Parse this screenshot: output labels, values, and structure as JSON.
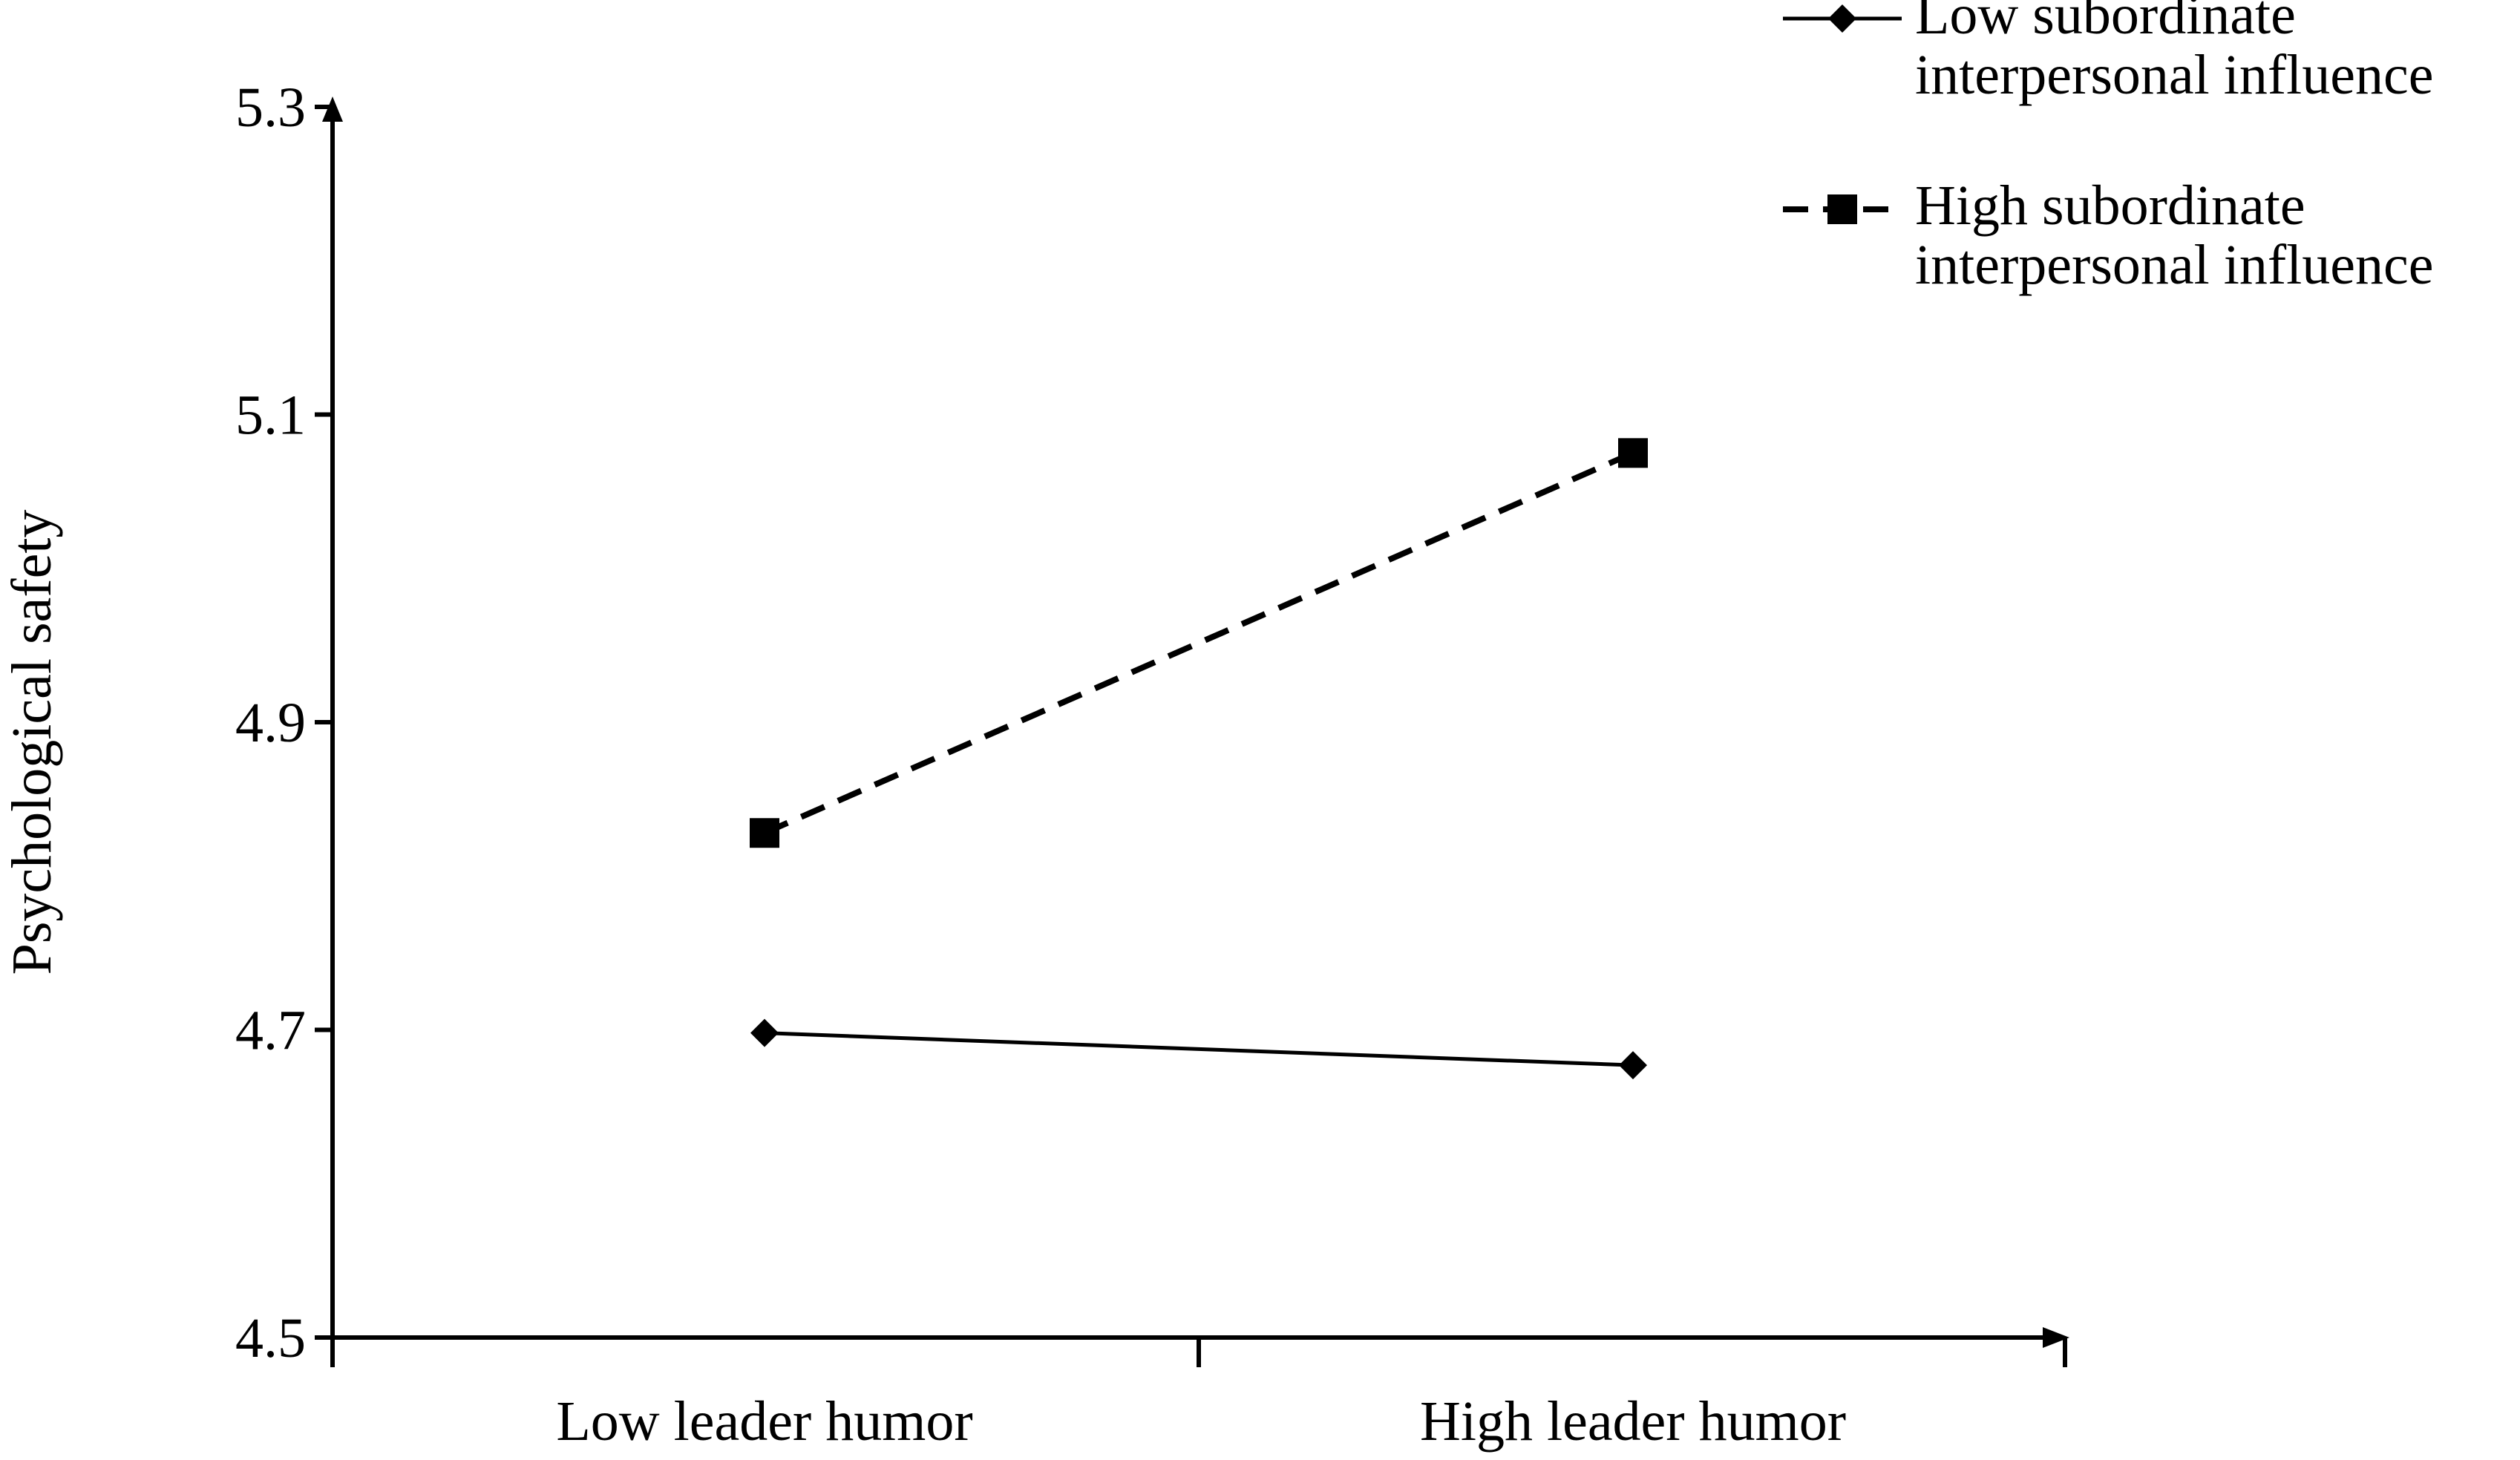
{
  "chart_data": {
    "type": "line",
    "title": "",
    "xlabel": "",
    "ylabel": "Psychological safety",
    "categories": [
      "Low leader humor",
      "High leader humor"
    ],
    "ylim": [
      4.5,
      5.3
    ],
    "yticks": [
      "4.5",
      "4.7",
      "4.9",
      "5.1",
      "5.3"
    ],
    "grid": false,
    "legend_position": "top-right",
    "series": [
      {
        "name": "Low subordinate interpersonal influence",
        "name_lines": [
          "Low subordinate",
          "interpersonal influence"
        ],
        "values": [
          4.698,
          4.677
        ],
        "line_style": "solid",
        "marker": "diamond",
        "color": "#000000"
      },
      {
        "name": "High subordinate interpersonal influence",
        "name_lines": [
          "High subordinate",
          "interpersonal influence"
        ],
        "values": [
          4.828,
          5.075
        ],
        "line_style": "dashed",
        "marker": "square",
        "color": "#000000"
      }
    ]
  }
}
